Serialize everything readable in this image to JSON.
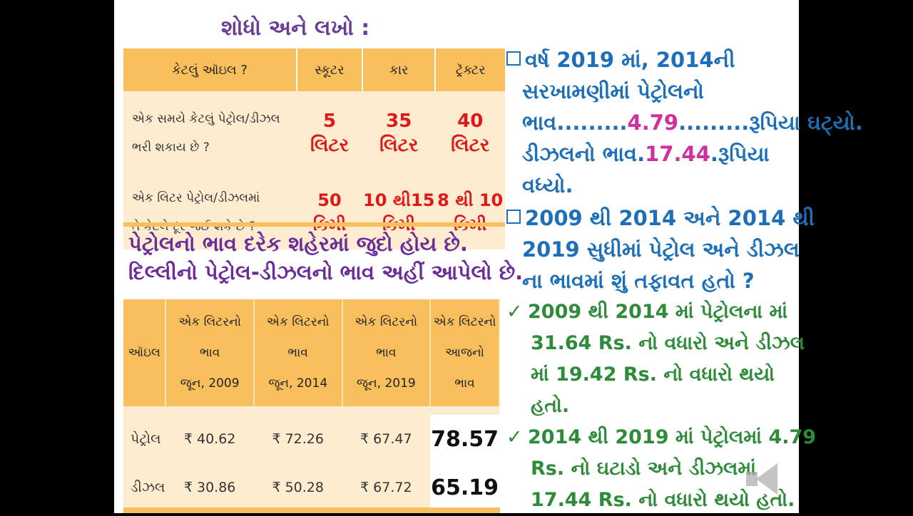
{
  "heading": "શોધો અને લખો :",
  "table1": {
    "headers": [
      "કેટલું ઑઇલ ?",
      "સ્કૂટર",
      "કાર",
      "ટ્રૅક્ટર"
    ],
    "rows": [
      {
        "q1": "એક સમયે કેટલું પેટ્રોલ/ડીઝલ",
        "q2": "ભરી શકાય છે ?",
        "v": [
          [
            "5",
            "લિટર"
          ],
          [
            "35",
            "લિટર"
          ],
          [
            "40",
            "લિટર"
          ]
        ]
      },
      {
        "q1": "એક લિટર પેટ્રોલ/ડીઝલમાં",
        "q2": "તે કેટલે દૂર જઈ શકે છે ?",
        "v": [
          [
            "50",
            "કિમી"
          ],
          [
            "10 થી15",
            "કિમી"
          ],
          [
            "8 થી 10",
            "કિમી"
          ]
        ]
      }
    ]
  },
  "para": {
    "line1": "પેટ્રોલનો ભાવ દરેક શહેરમાં જુદો હોય છે.",
    "line2": "દિલ્લીનો પેટ્રોલ-ડીઝલનો ભાવ અહીં આપેલો છે."
  },
  "table2": {
    "h0": "ઑઇલ",
    "headers": [
      [
        "એક લિટરનો",
        "ભાવ",
        "જૂન, 2009"
      ],
      [
        "એક લિટરનો",
        "ભાવ",
        "જૂન, 2014"
      ],
      [
        "એક લિટરનો",
        "ભાવ",
        "જૂન, 2019"
      ],
      [
        "એક લિટરનો",
        "આજનો",
        "ભાવ"
      ]
    ],
    "rows": [
      {
        "name": "પેટ્રોલ",
        "v": [
          "₹ 40.62",
          "₹ 72.26",
          "₹ 67.47"
        ],
        "today": "78.57"
      },
      {
        "name": "ડીઝલ",
        "v": [
          "₹ 30.86",
          "₹ 50.28",
          "₹ 67.72"
        ],
        "today": "65.19"
      }
    ]
  },
  "right": {
    "q1": {
      "l1": "વર્ષ 2019 માં, 2014ની",
      "l2": "સરખામણીમાં પેટ્રોલનો",
      "l3a": "ભાવ.........",
      "l3fill": "4.79",
      "l3b": ".........રૂપિયા ઘટ્યો.",
      "l4a": "ડીઝલનો ભાવ.",
      "l4fill": "17.44",
      "l4b": ".રૂપિયા",
      "l5": "વધ્યો."
    },
    "q2": {
      "l1": "2009 થી 2014 અને 2014 થી",
      "l2": "2019 સુધીમાં પેટ્રોલ અને ડીઝલ",
      "l3": "ના ભાવમાં શું તફાવત હતો ?"
    },
    "a1": {
      "check": "✓",
      "l1": "2009 થી 2014 માં પેટ્રોલના માં",
      "l2": "31.64 Rs. નો વધારો અને ડીઝલ",
      "l3": "માં 19.42 Rs. નો વધારો થયો",
      "l4": "હતો."
    },
    "a2": {
      "check": "✓",
      "l1": "2014 થી 2019 માં પેટ્રોલમાં 4.79",
      "l2": "Rs. નો ઘટાડો અને ડીઝલમાં",
      "l3": "17.44 Rs. નો વધારો થયો હતો."
    }
  }
}
